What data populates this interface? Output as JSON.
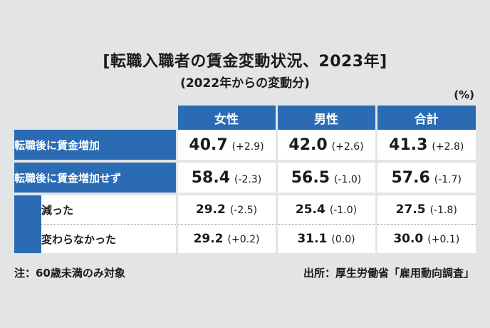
{
  "title": "[転職入職者の賃金変動状況、2023年]",
  "subtitle": "(2022年からの変動分)",
  "unit": "(%)",
  "columns": [
    "女性",
    "男性",
    "合計"
  ],
  "rows": {
    "increase": {
      "label": "転職後に賃金増加",
      "cells": [
        {
          "value": "40.7",
          "change": "(+2.9)"
        },
        {
          "value": "42.0",
          "change": "(+2.6)"
        },
        {
          "value": "41.3",
          "change": "(+2.8)"
        }
      ]
    },
    "no_increase": {
      "label": "転職後に賃金増加せず",
      "cells": [
        {
          "value": "58.4",
          "change": "(-2.3)"
        },
        {
          "value": "56.5",
          "change": "(-1.0)"
        },
        {
          "value": "57.6",
          "change": "(-1.7)"
        }
      ]
    },
    "decreased": {
      "label": "減った",
      "cells": [
        {
          "value": "29.2",
          "change": "(-2.5)"
        },
        {
          "value": "25.4",
          "change": "(-1.0)"
        },
        {
          "value": "27.5",
          "change": "(-1.8)"
        }
      ]
    },
    "unchanged": {
      "label": "変わらなかった",
      "cells": [
        {
          "value": "29.2",
          "change": "(+0.2)"
        },
        {
          "value": "31.1",
          "change": "(0.0)"
        },
        {
          "value": "30.0",
          "change": "(+0.1)"
        }
      ]
    }
  },
  "note": "注：60歳未満のみ対象",
  "source": "出所：厚生労働省「雇用動向調査」",
  "colors": {
    "header_blue": "#2a6bb4",
    "background": "#e2e4e6",
    "cell": "#ffffff"
  },
  "chart_data": {
    "type": "table",
    "title": "[転職入職者の賃金変動状況、2023年]",
    "subtitle": "(2022年からの変動分)",
    "unit": "(%)",
    "columns": [
      "女性",
      "男性",
      "合計"
    ],
    "rows": [
      {
        "label": "転職後に賃金増加",
        "values": [
          40.7,
          42.0,
          41.3
        ],
        "changes": [
          2.9,
          2.6,
          2.8
        ]
      },
      {
        "label": "転職後に賃金増加せず",
        "values": [
          58.4,
          56.5,
          57.6
        ],
        "changes": [
          -2.3,
          -1.0,
          -1.7
        ]
      },
      {
        "label": "減った",
        "values": [
          29.2,
          25.4,
          27.5
        ],
        "changes": [
          -2.5,
          -1.0,
          -1.8
        ]
      },
      {
        "label": "変わらなかった",
        "values": [
          29.2,
          31.1,
          30.0
        ],
        "changes": [
          0.2,
          0.0,
          0.1
        ]
      }
    ]
  }
}
